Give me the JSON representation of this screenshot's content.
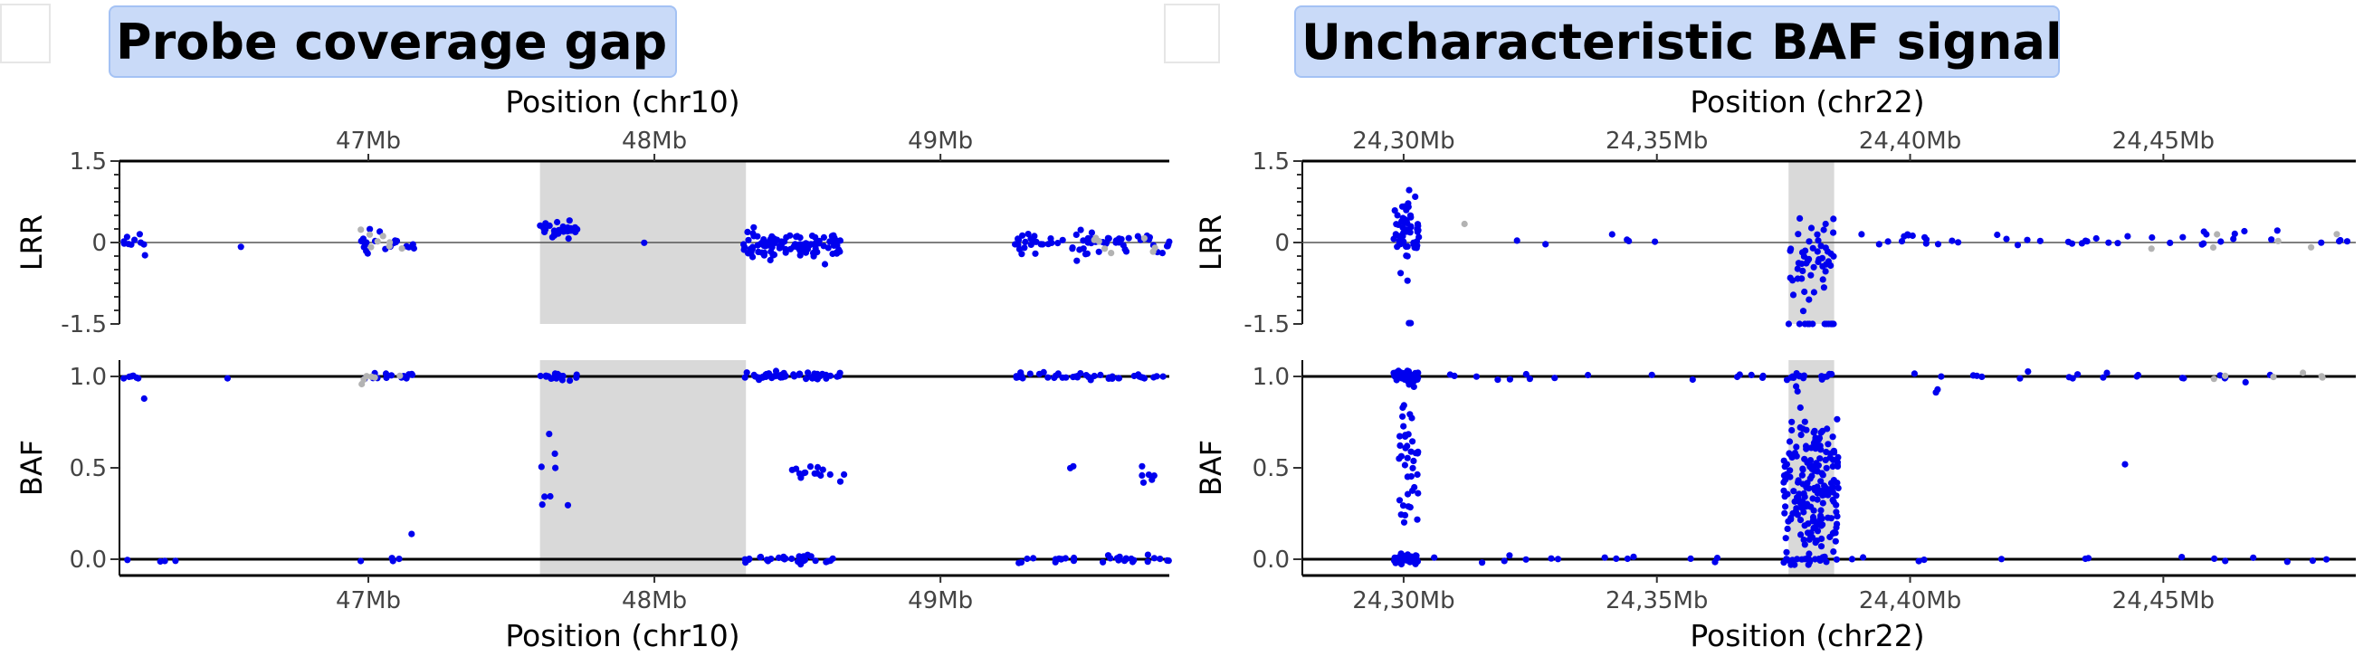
{
  "colors": {
    "accent_blue": "#0000ee",
    "filtered_gray": "#b3b3b3",
    "highlight_gray": "#d9d9d9",
    "title_fill": "#c9daf8"
  },
  "chart_data": [
    {
      "type": "scatter",
      "title": "Probe coverage gap",
      "chromosome": "chr10",
      "xlabel_top": "Position (chr10)",
      "xlabel_bottom": "Position (chr10)",
      "xlim": [
        46.13,
        49.8
      ],
      "x_ticks": [
        47,
        48,
        49
      ],
      "x_tick_labels": [
        "47Mb",
        "48Mb",
        "49Mb"
      ],
      "highlight_region": [
        47.6,
        48.32
      ],
      "lrr": {
        "ylabel": "LRR",
        "ylim": [
          -1.5,
          1.5
        ],
        "y_ticks": [
          1.5,
          0,
          -1.5
        ],
        "y_tick_labels": [
          "1.5",
          "0",
          "-1.5"
        ],
        "clusters": [
          {
            "x": [
              46.14,
              46.23
            ],
            "mean": 0.0,
            "sd": 0.2,
            "n": 10,
            "color": "blue"
          },
          {
            "x": [
              46.55,
              46.56
            ],
            "mean": -0.1,
            "sd": 0.02,
            "n": 1,
            "color": "blue"
          },
          {
            "x": [
              46.97,
              47.16
            ],
            "mean": 0.05,
            "sd": 0.1,
            "n": 20,
            "color": "blue"
          },
          {
            "x": [
              46.97,
              47.12
            ],
            "mean": 0.05,
            "sd": 0.12,
            "n": 8,
            "color": "gray"
          },
          {
            "x": [
              47.6,
              47.73
            ],
            "mean": 0.2,
            "sd": 0.12,
            "n": 26,
            "color": "blue"
          },
          {
            "x": [
              47.96,
              47.97
            ],
            "mean": 0.0,
            "sd": 0.01,
            "n": 1,
            "color": "blue"
          },
          {
            "x": [
              48.31,
              48.65
            ],
            "mean": -0.05,
            "sd": 0.1,
            "n": 110,
            "color": "blue"
          },
          {
            "x": [
              49.26,
              49.8
            ],
            "mean": 0.0,
            "sd": 0.1,
            "n": 70,
            "color": "blue"
          },
          {
            "x": [
              49.5,
              49.75
            ],
            "mean": 0.0,
            "sd": 0.1,
            "n": 8,
            "color": "gray"
          }
        ]
      },
      "baf": {
        "ylabel": "BAF",
        "ylim": [
          0,
          1
        ],
        "y_ticks": [
          1.0,
          0.5,
          0.0
        ],
        "y_tick_labels": [
          "1.0",
          "0.5",
          "0.0"
        ],
        "clusters": [
          {
            "x": [
              46.14,
              46.2
            ],
            "mean": 1.0,
            "sd": 0.01,
            "n": 6,
            "color": "blue"
          },
          {
            "x": [
              46.21,
              46.22
            ],
            "mean": 0.88,
            "sd": 0.01,
            "n": 1,
            "color": "blue"
          },
          {
            "x": [
              46.5,
              46.51
            ],
            "mean": 1.0,
            "sd": 0.01,
            "n": 1,
            "color": "blue"
          },
          {
            "x": [
              46.97,
              47.16
            ],
            "mean": 1.0,
            "sd": 0.01,
            "n": 14,
            "color": "blue"
          },
          {
            "x": [
              46.97,
              47.12
            ],
            "mean": 0.99,
            "sd": 0.02,
            "n": 6,
            "color": "gray"
          },
          {
            "x": [
              47.6,
              47.73
            ],
            "mean": 1.0,
            "sd": 0.01,
            "n": 16,
            "color": "blue"
          },
          {
            "x": [
              47.6,
              47.7
            ],
            "mean": 0.58,
            "sd": 0.05,
            "n": 4,
            "color": "blue"
          },
          {
            "x": [
              47.6,
              47.7
            ],
            "mean": 0.35,
            "sd": 0.05,
            "n": 4,
            "color": "blue"
          },
          {
            "x": [
              48.31,
              48.65
            ],
            "mean": 1.0,
            "sd": 0.01,
            "n": 50,
            "color": "blue"
          },
          {
            "x": [
              48.45,
              48.67
            ],
            "mean": 0.48,
            "sd": 0.02,
            "n": 16,
            "color": "blue"
          },
          {
            "x": [
              49.4,
              49.48
            ],
            "mean": 0.5,
            "sd": 0.01,
            "n": 2,
            "color": "blue"
          },
          {
            "x": [
              49.7,
              49.75
            ],
            "mean": 0.48,
            "sd": 0.03,
            "n": 6,
            "color": "blue"
          },
          {
            "x": [
              49.26,
              49.8
            ],
            "mean": 1.0,
            "sd": 0.01,
            "n": 40,
            "color": "blue"
          },
          {
            "x": [
              47.15,
              47.16
            ],
            "mean": 0.16,
            "sd": 0.01,
            "n": 1,
            "color": "blue"
          },
          {
            "x": [
              46.14,
              46.35
            ],
            "mean": 0.0,
            "sd": 0.01,
            "n": 4,
            "color": "blue"
          },
          {
            "x": [
              46.97,
              47.16
            ],
            "mean": 0.0,
            "sd": 0.01,
            "n": 4,
            "color": "blue"
          },
          {
            "x": [
              48.31,
              48.65
            ],
            "mean": 0.0,
            "sd": 0.01,
            "n": 30,
            "color": "blue"
          },
          {
            "x": [
              49.26,
              49.8
            ],
            "mean": 0.0,
            "sd": 0.01,
            "n": 30,
            "color": "blue"
          }
        ]
      }
    },
    {
      "type": "scatter",
      "title": "Uncharacteristic BAF signal",
      "chromosome": "chr22",
      "xlabel_top": "Position (chr22)",
      "xlabel_bottom": "Position (chr22)",
      "xlim": [
        24.28,
        24.488
      ],
      "x_ticks": [
        24.3,
        24.35,
        24.4,
        24.45
      ],
      "x_tick_labels": [
        "24,30Mb",
        "24,35Mb",
        "24,40Mb",
        "24,45Mb"
      ],
      "highlight_region": [
        24.376,
        24.385
      ],
      "lrr": {
        "ylabel": "LRR",
        "ylim": [
          -1.5,
          1.5
        ],
        "y_ticks": [
          1.5,
          0,
          -1.5
        ],
        "y_tick_labels": [
          "1.5",
          "0",
          "-1.5"
        ],
        "clusters": [
          {
            "x": [
              24.298,
              24.303
            ],
            "mean": 0.2,
            "sd": 0.3,
            "n": 60,
            "color": "blue"
          },
          {
            "x": [
              24.301,
              24.302
            ],
            "mean": -1.47,
            "sd": 0.01,
            "n": 2,
            "color": "blue"
          },
          {
            "x": [
              24.305,
              24.35
            ],
            "mean": 0.1,
            "sd": 0.1,
            "n": 6,
            "color": "blue"
          },
          {
            "x": [
              24.312,
              24.313
            ],
            "mean": 0.35,
            "sd": 0.01,
            "n": 1,
            "color": "gray"
          },
          {
            "x": [
              24.376,
              24.385
            ],
            "mean": -0.3,
            "sd": 0.35,
            "n": 50,
            "color": "blue"
          },
          {
            "x": [
              24.376,
              24.385
            ],
            "mean": -1.5,
            "sd": 0.0,
            "n": 14,
            "color": "blue"
          },
          {
            "x": [
              24.39,
              24.487
            ],
            "mean": 0.05,
            "sd": 0.1,
            "n": 45,
            "color": "blue"
          },
          {
            "x": [
              24.44,
              24.487
            ],
            "mean": 0.0,
            "sd": 0.1,
            "n": 6,
            "color": "gray"
          }
        ]
      },
      "baf": {
        "ylabel": "BAF",
        "ylim": [
          0,
          1
        ],
        "y_ticks": [
          1.0,
          0.5,
          0.0
        ],
        "y_tick_labels": [
          "1.0",
          "0.5",
          "0.0"
        ],
        "clusters": [
          {
            "x": [
              24.298,
              24.303
            ],
            "mean": 1.0,
            "sd": 0.02,
            "n": 40,
            "color": "blue"
          },
          {
            "x": [
              24.299,
              24.303
            ],
            "mean": 0.5,
            "sd": 0.2,
            "n": 40,
            "color": "blue"
          },
          {
            "x": [
              24.298,
              24.303
            ],
            "mean": 0.0,
            "sd": 0.02,
            "n": 40,
            "color": "blue"
          },
          {
            "x": [
              24.376,
              24.385
            ],
            "mean": 1.0,
            "sd": 0.01,
            "n": 12,
            "color": "blue"
          },
          {
            "x": [
              24.375,
              24.386
            ],
            "mean": 0.4,
            "sd": 0.22,
            "n": 200,
            "color": "blue"
          },
          {
            "x": [
              24.376,
              24.385
            ],
            "mean": 0.0,
            "sd": 0.01,
            "n": 12,
            "color": "blue"
          },
          {
            "x": [
              24.305,
              24.487
            ],
            "mean": 1.0,
            "sd": 0.01,
            "n": 40,
            "color": "blue"
          },
          {
            "x": [
              24.305,
              24.487
            ],
            "mean": 0.0,
            "sd": 0.01,
            "n": 30,
            "color": "blue"
          },
          {
            "x": [
              24.405,
              24.406
            ],
            "mean": 0.93,
            "sd": 0.02,
            "n": 2,
            "color": "blue"
          },
          {
            "x": [
              24.442,
              24.443
            ],
            "mean": 0.52,
            "sd": 0.01,
            "n": 1,
            "color": "blue"
          },
          {
            "x": [
              24.44,
              24.487
            ],
            "mean": 1.0,
            "sd": 0.01,
            "n": 6,
            "color": "gray"
          }
        ]
      }
    }
  ]
}
